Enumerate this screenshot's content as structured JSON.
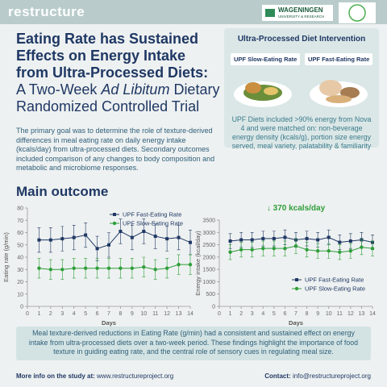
{
  "header": {
    "brand": "restructure",
    "partner": "WAGENINGEN",
    "partner_sub": "UNIVERSITY & RESEARCH"
  },
  "title": {
    "line1": "Eating Rate has Sustained Effects on Energy Intake from Ultra-Processed Diets:",
    "line2_pre": "A Two-Week ",
    "line2_italic": "Ad Libitum",
    "line2_post": " Dietary Randomized Controlled Trial"
  },
  "intro": "The primary goal was to determine the role of texture-derived differences in meal eating rate on daily energy intake (kcals/day) from ultra-processed diets. Secondary outcomes included comparison of any changes to body composition and metabolic and microbiome responses.",
  "intervention": {
    "heading": "Ultra-Processed Diet Intervention",
    "arms": [
      "UPF Slow-Eating Rate",
      "UPF Fast-Eating Rate"
    ],
    "description": "UPF Diets included >90% energy from Nova 4 and were matched on: non-beverage energy density (kcals/g), portion size energy served, meal variety, palatability & familiarity"
  },
  "section_heading": "Main outcome",
  "chart_data": [
    {
      "type": "line",
      "x_label": "Days",
      "y_label": "Eating rate (g/min)",
      "x": [
        1,
        2,
        3,
        4,
        5,
        6,
        7,
        8,
        9,
        10,
        11,
        12,
        13,
        14
      ],
      "xlim": [
        0,
        14
      ],
      "xticks": [
        0,
        1,
        2,
        3,
        4,
        5,
        6,
        7,
        8,
        9,
        10,
        11,
        12,
        13,
        14
      ],
      "ylim": [
        0,
        80
      ],
      "yticks": [
        0,
        10,
        20,
        30,
        40,
        50,
        60,
        70,
        80
      ],
      "legend": "upper right",
      "series": [
        {
          "name": "UPF Fast-Eating Rate",
          "color": "#1f3864",
          "marker": "square",
          "values": [
            54,
            54,
            55,
            56,
            58,
            47,
            50,
            61,
            56,
            61,
            57,
            55,
            56,
            52
          ],
          "errors": [
            10,
            10,
            10,
            10,
            10,
            10,
            10,
            10,
            10,
            10,
            10,
            10,
            10,
            10
          ]
        },
        {
          "name": "UPF Slow-Eating Rate",
          "color": "#2e9e3a",
          "marker": "circle",
          "values": [
            31,
            30,
            30,
            31,
            31,
            31,
            31,
            31,
            31,
            32,
            30,
            31,
            34,
            34
          ],
          "errors": [
            8,
            8,
            8,
            8,
            8,
            8,
            8,
            8,
            8,
            8,
            8,
            8,
            8,
            8
          ]
        }
      ]
    },
    {
      "type": "line",
      "x_label": "Days",
      "y_label": "Energy intake (kcal/day)",
      "annotation": "↓ 370 kcals/day",
      "x": [
        1,
        2,
        3,
        4,
        5,
        6,
        7,
        8,
        9,
        10,
        11,
        12,
        13,
        14
      ],
      "xlim": [
        0,
        14
      ],
      "xticks": [
        0,
        1,
        2,
        3,
        4,
        5,
        6,
        7,
        8,
        9,
        10,
        11,
        12,
        13,
        14
      ],
      "ylim": [
        0,
        3500
      ],
      "yticks": [
        0,
        500,
        1000,
        1500,
        2000,
        2500,
        3000,
        3500
      ],
      "legend": "lower right",
      "series": [
        {
          "name": "UPF Fast-Eating Rate",
          "color": "#1f3864",
          "marker": "square",
          "values": [
            2650,
            2700,
            2700,
            2750,
            2750,
            2800,
            2700,
            2750,
            2700,
            2800,
            2600,
            2650,
            2700,
            2600
          ],
          "errors": [
            300,
            300,
            300,
            300,
            300,
            300,
            300,
            300,
            300,
            300,
            300,
            300,
            300,
            300
          ]
        },
        {
          "name": "UPF Slow-Eating Rate",
          "color": "#2e9e3a",
          "marker": "circle",
          "values": [
            2200,
            2300,
            2300,
            2350,
            2350,
            2350,
            2450,
            2300,
            2250,
            2250,
            2200,
            2250,
            2400,
            2350
          ],
          "errors": [
            300,
            300,
            300,
            300,
            300,
            300,
            300,
            300,
            300,
            300,
            300,
            300,
            300,
            300
          ]
        }
      ]
    }
  ],
  "conclusion": "Meal texture-derived reductions in Eating Rate (g/min) had a consistent and sustained effect on energy intake from ultra-processed diets over a two-week period. These findings highlight the importance of food texture in guiding eating rate, and the central role of sensory cues in regulating meal size.",
  "footer": {
    "info_label": "More info on the study at:",
    "info_url": "www.restructureproject.org",
    "contact_label": "Contact:",
    "contact_email": "info@restructureproject.org"
  }
}
